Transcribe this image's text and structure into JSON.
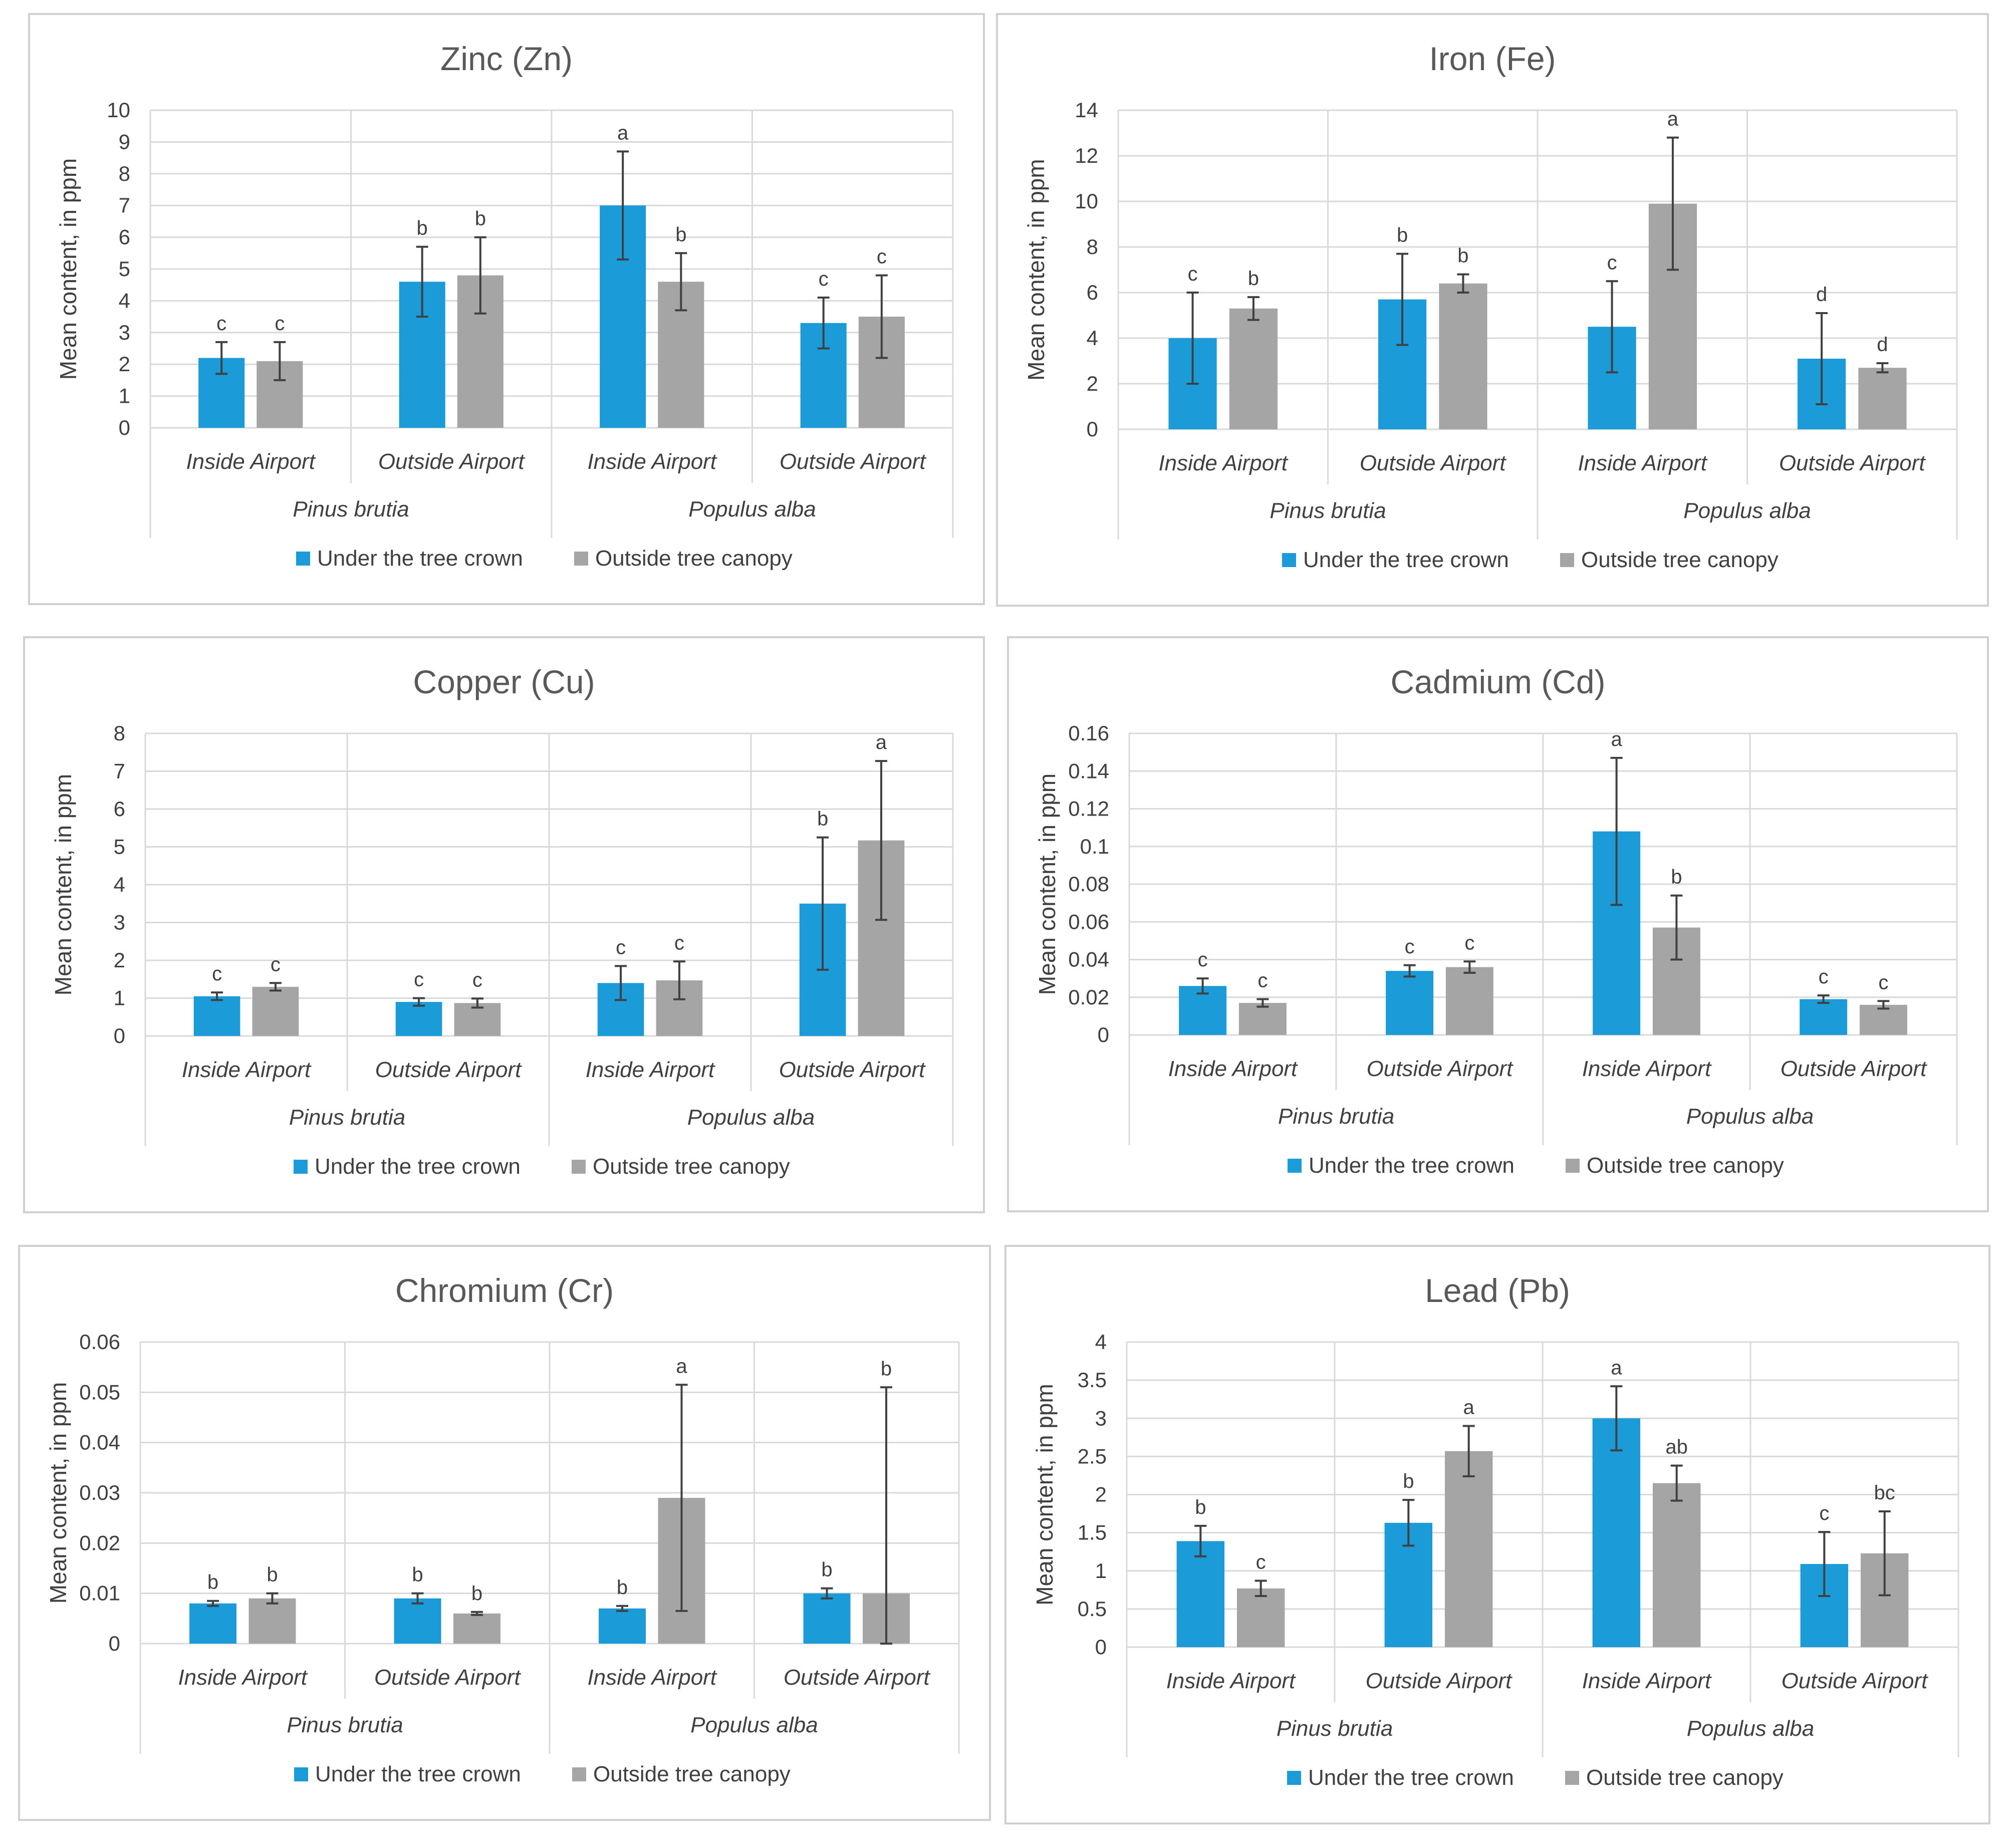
{
  "colors": {
    "under": "#1b9bd7",
    "outside": "#a5a5a5",
    "grid": "#d9d9d9",
    "error": "#404040"
  },
  "legend": {
    "under": "Under the tree crown",
    "outside": "Outside tree canopy"
  },
  "y_axis_title": "Mean content, in ppm",
  "categories": [
    "Inside Airport",
    "Outside Airport",
    "Inside Airport",
    "Outside Airport"
  ],
  "groups": [
    "Pinus brutia",
    "Populus alba"
  ],
  "chart_data": [
    {
      "type": "bar",
      "title": "Zinc (Zn)",
      "ylim": [
        0,
        10
      ],
      "ticks": [
        "0",
        "1",
        "2",
        "3",
        "4",
        "5",
        "6",
        "7",
        "8",
        "9",
        "10"
      ],
      "series": [
        {
          "name": "Under the tree crown",
          "values": [
            2.2,
            4.6,
            7.0,
            3.3
          ],
          "errors": [
            0.5,
            1.1,
            1.7,
            0.8
          ],
          "letters": [
            "c",
            "b",
            "a",
            "c"
          ]
        },
        {
          "name": "Outside tree canopy",
          "values": [
            2.1,
            4.8,
            4.6,
            3.5
          ],
          "errors": [
            0.6,
            1.2,
            0.9,
            1.3
          ],
          "letters": [
            "c",
            "b",
            "b",
            "c"
          ]
        }
      ]
    },
    {
      "type": "bar",
      "title": "Iron (Fe)",
      "ylim": [
        0,
        14
      ],
      "ticks": [
        "0",
        "2",
        "4",
        "6",
        "8",
        "10",
        "12",
        "14"
      ],
      "series": [
        {
          "name": "Under the tree crown",
          "values": [
            4.0,
            5.7,
            4.5,
            3.1
          ],
          "errors": [
            2.0,
            2.0,
            2.0,
            2.0
          ],
          "letters": [
            "c",
            "b",
            "c",
            "d"
          ]
        },
        {
          "name": "Outside tree canopy",
          "values": [
            5.3,
            6.4,
            9.9,
            2.7
          ],
          "errors": [
            0.5,
            0.4,
            2.9,
            0.2
          ],
          "letters": [
            "b",
            "b",
            "a",
            "d"
          ]
        }
      ]
    },
    {
      "type": "bar",
      "title": "Copper (Cu)",
      "ylim": [
        0,
        8
      ],
      "ticks": [
        "0",
        "1",
        "2",
        "3",
        "4",
        "5",
        "6",
        "7",
        "8"
      ],
      "series": [
        {
          "name": "Under the tree crown",
          "values": [
            1.05,
            0.9,
            1.4,
            3.5
          ],
          "errors": [
            0.1,
            0.1,
            0.45,
            1.75
          ],
          "letters": [
            "c",
            "c",
            "c",
            "b"
          ]
        },
        {
          "name": "Outside tree canopy",
          "values": [
            1.3,
            0.87,
            1.47,
            5.17
          ],
          "errors": [
            0.1,
            0.12,
            0.5,
            2.1
          ],
          "letters": [
            "c",
            "c",
            "c",
            "a"
          ]
        }
      ]
    },
    {
      "type": "bar",
      "title": "Cadmium (Cd)",
      "ylim": [
        0,
        0.16
      ],
      "ticks": [
        "0",
        "0.02",
        "0.04",
        "0.06",
        "0.08",
        "0.1",
        "0.12",
        "0.14",
        "0.16"
      ],
      "series": [
        {
          "name": "Under the tree crown",
          "values": [
            0.026,
            0.034,
            0.108,
            0.019
          ],
          "errors": [
            0.004,
            0.003,
            0.039,
            0.002
          ],
          "letters": [
            "c",
            "c",
            "a",
            "c"
          ]
        },
        {
          "name": "Outside tree canopy",
          "values": [
            0.017,
            0.036,
            0.057,
            0.016
          ],
          "errors": [
            0.002,
            0.003,
            0.017,
            0.002
          ],
          "letters": [
            "c",
            "c",
            "b",
            "c"
          ]
        }
      ]
    },
    {
      "type": "bar",
      "title": "Chromium (Cr)",
      "ylim": [
        0,
        0.06
      ],
      "ticks": [
        "0",
        "0.01",
        "0.02",
        "0.03",
        "0.04",
        "0.05",
        "0.06"
      ],
      "series": [
        {
          "name": "Under the tree crown",
          "values": [
            0.008,
            0.009,
            0.007,
            0.01
          ],
          "errors": [
            0.0005,
            0.001,
            0.0005,
            0.001
          ],
          "letters": [
            "b",
            "b",
            "b",
            "b"
          ]
        },
        {
          "name": "Outside tree canopy",
          "values": [
            0.009,
            0.006,
            0.029,
            0.01
          ],
          "errors": [
            0.001,
            0.0003,
            0.0225,
            0.041
          ],
          "letters": [
            "b",
            "b",
            "a",
            "b"
          ]
        }
      ]
    },
    {
      "type": "bar",
      "title": "Lead (Pb)",
      "ylim": [
        0,
        4
      ],
      "ticks": [
        "0",
        "0.5",
        "1",
        "1.5",
        "2",
        "2.5",
        "3",
        "3.5",
        "4"
      ],
      "series": [
        {
          "name": "Under the tree crown",
          "values": [
            1.39,
            1.63,
            3.0,
            1.09
          ],
          "errors": [
            0.2,
            0.3,
            0.42,
            0.42
          ],
          "letters": [
            "b",
            "b",
            "a",
            "c"
          ]
        },
        {
          "name": "Outside tree canopy",
          "values": [
            0.77,
            2.57,
            2.15,
            1.23
          ],
          "errors": [
            0.1,
            0.33,
            0.23,
            0.55
          ],
          "letters": [
            "c",
            "a",
            "ab",
            "bc"
          ]
        }
      ]
    }
  ]
}
